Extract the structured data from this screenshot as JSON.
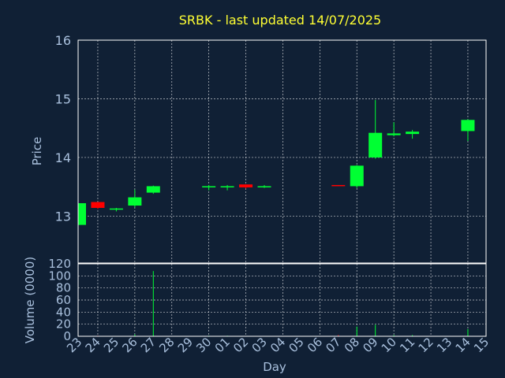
{
  "chart_data": {
    "type": "candlestick",
    "title": "SRBK - last updated 14/07/2025",
    "xlabel": "Day",
    "price_panel": {
      "ylabel": "Price",
      "ylim": [
        12.2,
        16.0
      ],
      "yticks": [
        13,
        14,
        15,
        16
      ],
      "grid": true
    },
    "volume_panel": {
      "ylabel": "Volume (0000)",
      "ylim": [
        0,
        120
      ],
      "yticks": [
        0,
        20,
        40,
        60,
        80,
        100,
        120
      ],
      "grid": true
    },
    "days": [
      "23",
      "24",
      "25",
      "26",
      "27",
      "28",
      "29",
      "30",
      "01",
      "02",
      "03",
      "04",
      "05",
      "06",
      "07",
      "08",
      "09",
      "10",
      "11",
      "12",
      "13",
      "14",
      "15"
    ],
    "candles": [
      {
        "day": "23",
        "open": 12.85,
        "high": 13.22,
        "low": 12.85,
        "close": 13.22,
        "volume": 0
      },
      {
        "day": "24",
        "open": 13.24,
        "high": 13.24,
        "low": 13.12,
        "close": 13.14,
        "volume": 1
      },
      {
        "day": "25",
        "open": 13.11,
        "high": 13.14,
        "low": 13.08,
        "close": 13.13,
        "volume": 0
      },
      {
        "day": "26",
        "open": 13.18,
        "high": 13.45,
        "low": 13.15,
        "close": 13.32,
        "volume": 3
      },
      {
        "day": "27",
        "open": 13.4,
        "high": 13.52,
        "low": 13.38,
        "close": 13.51,
        "volume": 108
      },
      {
        "day": "30",
        "open": 13.49,
        "high": 13.53,
        "low": 13.44,
        "close": 13.51,
        "volume": 1
      },
      {
        "day": "01",
        "open": 13.49,
        "high": 13.53,
        "low": 13.44,
        "close": 13.51,
        "volume": 1
      },
      {
        "day": "02",
        "open": 13.54,
        "high": 13.54,
        "low": 13.47,
        "close": 13.49,
        "volume": 0
      },
      {
        "day": "03",
        "open": 13.49,
        "high": 13.53,
        "low": 13.48,
        "close": 13.51,
        "volume": 0
      },
      {
        "day": "07",
        "open": 13.53,
        "high": 13.53,
        "low": 13.52,
        "close": 13.52,
        "volume": 2
      },
      {
        "day": "08",
        "open": 13.51,
        "high": 13.87,
        "low": 13.48,
        "close": 13.86,
        "volume": 16
      },
      {
        "day": "09",
        "open": 14.0,
        "high": 14.98,
        "low": 13.98,
        "close": 14.42,
        "volume": 19
      },
      {
        "day": "10",
        "open": 14.38,
        "high": 14.6,
        "low": 14.36,
        "close": 14.41,
        "volume": 2
      },
      {
        "day": "11",
        "open": 14.4,
        "high": 14.47,
        "low": 14.32,
        "close": 14.44,
        "volume": 2
      },
      {
        "day": "14",
        "open": 14.45,
        "high": 14.65,
        "low": 14.28,
        "close": 14.64,
        "volume": 12
      }
    ],
    "colors": {
      "background": "#102035",
      "up": "#00ff33",
      "down": "#ff0000",
      "title": "#ffff33",
      "tick": "#a9c0dd"
    }
  }
}
